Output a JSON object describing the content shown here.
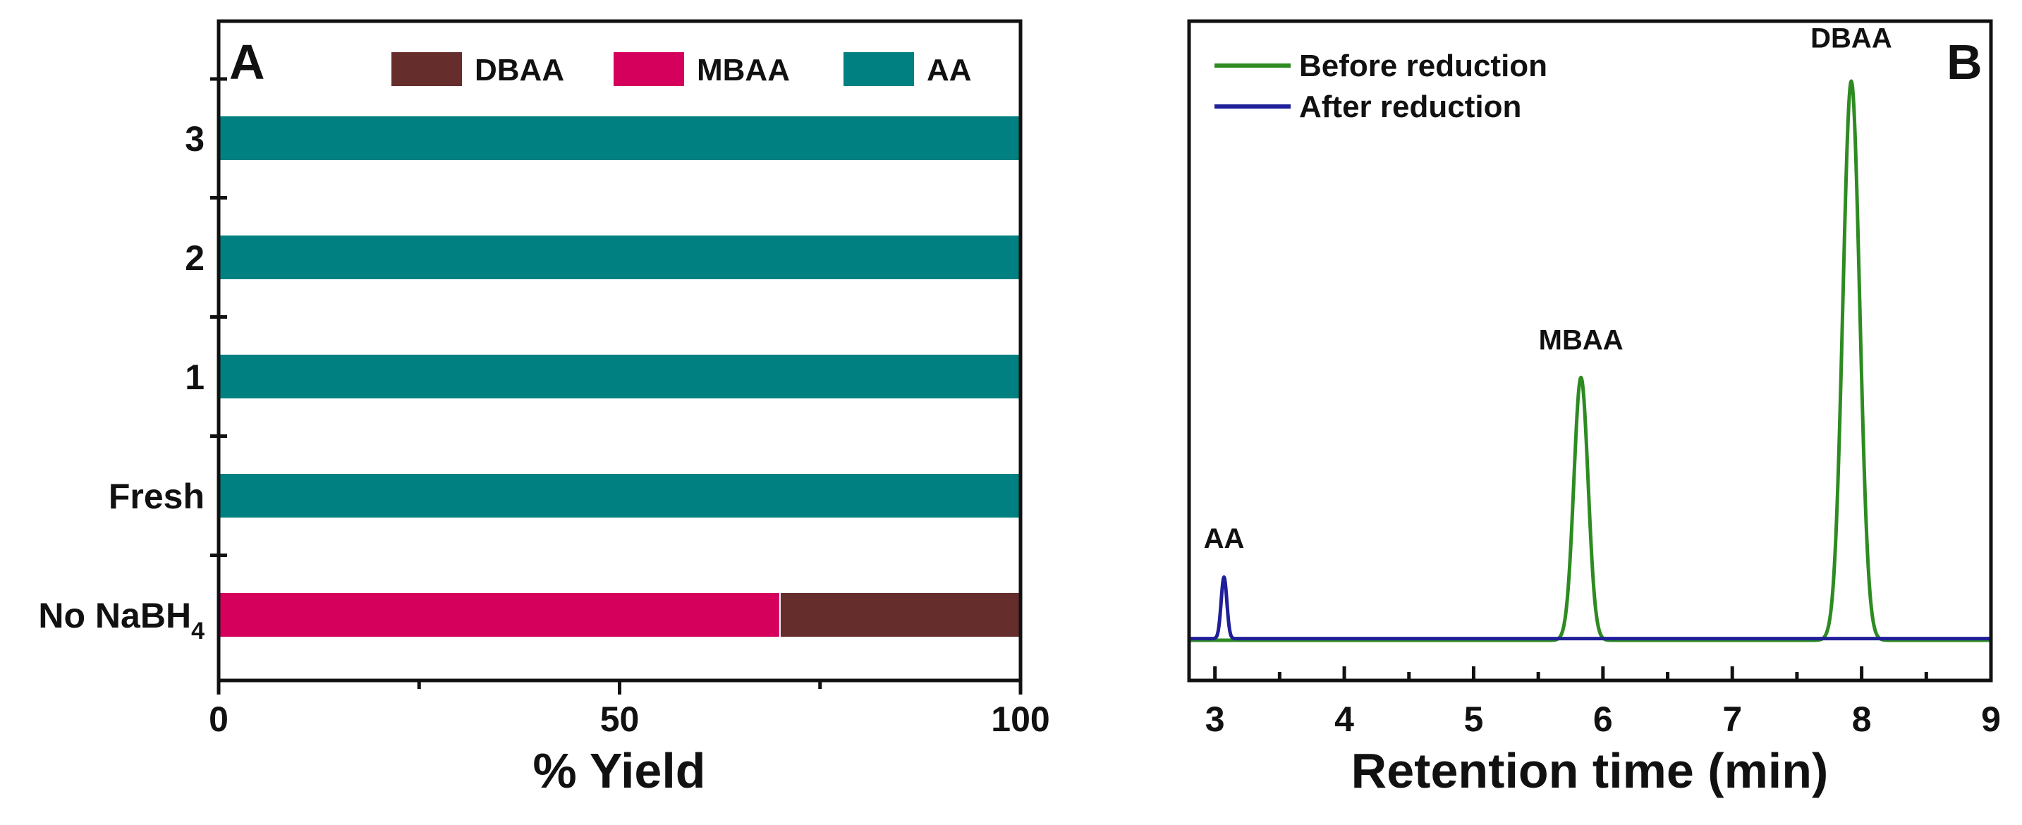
{
  "chart_data": [
    {
      "panel": "A",
      "type": "bar",
      "orientation": "horizontal",
      "stacked": true,
      "categories": [
        "No NaBH4",
        "Fresh",
        "1",
        "2",
        "3"
      ],
      "category_label_parts": [
        {
          "main": "No NaBH",
          "sub": "4"
        },
        {
          "main": "Fresh",
          "sub": ""
        },
        {
          "main": "1",
          "sub": ""
        },
        {
          "main": "2",
          "sub": ""
        },
        {
          "main": "3",
          "sub": ""
        }
      ],
      "series": [
        {
          "name": "MBAA",
          "color": "#d4005c",
          "values": [
            70,
            0,
            0,
            0,
            0
          ]
        },
        {
          "name": "DBAA",
          "color": "#662d2d",
          "values": [
            30,
            0,
            0,
            0,
            0
          ]
        },
        {
          "name": "AA",
          "color": "#008080",
          "values": [
            0,
            100,
            100,
            100,
            100
          ]
        }
      ],
      "legend_order": [
        "DBAA",
        "MBAA",
        "AA"
      ],
      "xlabel": "% Yield",
      "xlim": [
        0,
        100
      ],
      "xticks": [
        0,
        50,
        100
      ],
      "legend_position": "top"
    },
    {
      "panel": "B",
      "type": "line",
      "xlabel": "Retention time (min)",
      "ylabel": "",
      "xlim": [
        2.8,
        9
      ],
      "xticks": [
        3,
        4,
        5,
        6,
        7,
        8,
        9
      ],
      "ylim": [
        0,
        1.0
      ],
      "legend_position": "top-left",
      "series": [
        {
          "name": "Before reduction",
          "color": "#2e8b22",
          "baseline": 0.0,
          "peaks": [
            {
              "x": 5.83,
              "height": 0.47,
              "width": 0.055
            },
            {
              "x": 7.92,
              "height": 1.0,
              "width": 0.065
            }
          ]
        },
        {
          "name": "After reduction",
          "color": "#1f1f99",
          "baseline": 0.003,
          "peaks": [
            {
              "x": 3.07,
              "height": 0.11,
              "width": 0.022
            }
          ]
        }
      ],
      "annotations": [
        {
          "text": "AA",
          "x": 3.07,
          "y": 0.165
        },
        {
          "text": "MBAA",
          "x": 5.83,
          "y": 0.52
        },
        {
          "text": "DBAA",
          "x": 7.92,
          "y": 1.06
        }
      ]
    }
  ]
}
